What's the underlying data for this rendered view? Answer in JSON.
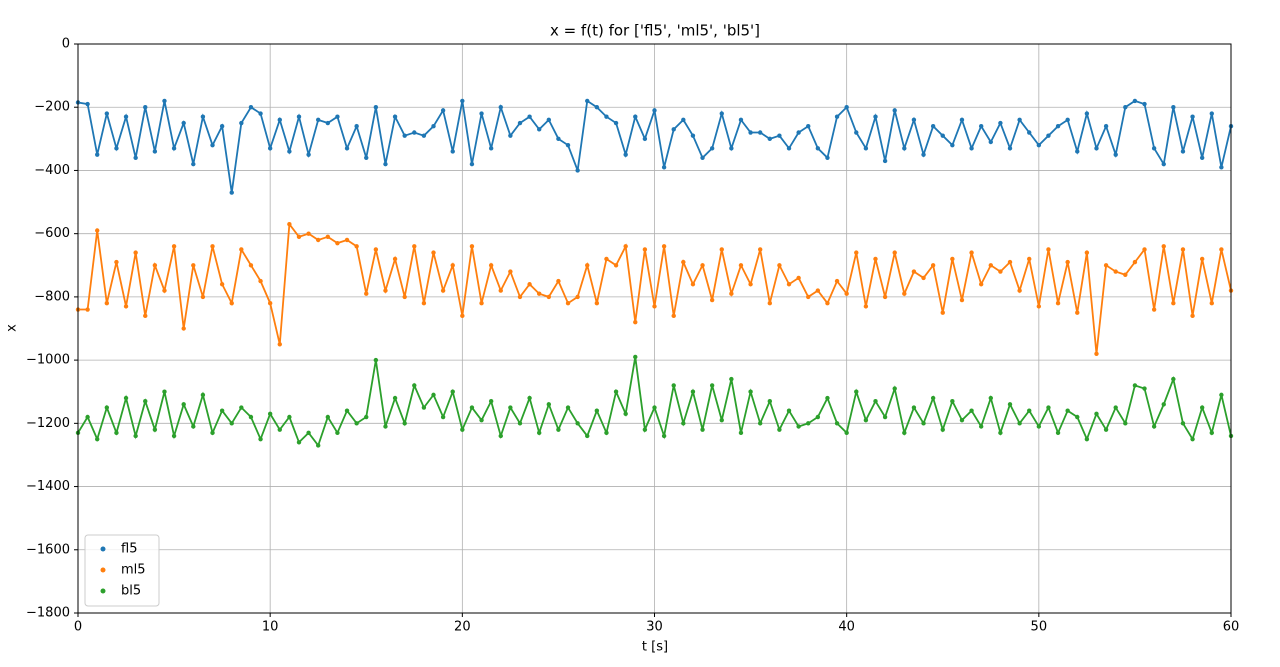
{
  "chart_data": {
    "type": "line",
    "title": "x = f(t) for ['fl5', 'ml5', 'bl5']",
    "xlabel": "t [s]",
    "ylabel": "x",
    "x": [
      0,
      0.5,
      1,
      1.5,
      2,
      2.5,
      3,
      3.5,
      4,
      4.5,
      5,
      5.5,
      6,
      6.5,
      7,
      7.5,
      8,
      8.5,
      9,
      9.5,
      10,
      10.5,
      11,
      11.5,
      12,
      12.5,
      13,
      13.5,
      14,
      14.5,
      15,
      15.5,
      16,
      16.5,
      17,
      17.5,
      18,
      18.5,
      19,
      19.5,
      20,
      20.5,
      21,
      21.5,
      22,
      22.5,
      23,
      23.5,
      24,
      24.5,
      25,
      25.5,
      26,
      26.5,
      27,
      27.5,
      28,
      28.5,
      29,
      29.5,
      30,
      30.5,
      31,
      31.5,
      32,
      32.5,
      33,
      33.5,
      34,
      34.5,
      35,
      35.5,
      36,
      36.5,
      37,
      37.5,
      38,
      38.5,
      39,
      39.5,
      40,
      40.5,
      41,
      41.5,
      42,
      42.5,
      43,
      43.5,
      44,
      44.5,
      45,
      45.5,
      46,
      46.5,
      47,
      47.5,
      48,
      48.5,
      49,
      49.5,
      50,
      50.5,
      51,
      51.5,
      52,
      52.5,
      53,
      53.5,
      54,
      54.5,
      55,
      55.5,
      56,
      56.5,
      57,
      57.5,
      58,
      58.5,
      59,
      59.5,
      60
    ],
    "series": [
      {
        "name": "fl5",
        "color": "#1f77b4",
        "values": [
          -185,
          -190,
          -350,
          -220,
          -330,
          -230,
          -360,
          -200,
          -340,
          -180,
          -330,
          -250,
          -380,
          -230,
          -320,
          -260,
          -470,
          -250,
          -200,
          -220,
          -330,
          -240,
          -340,
          -230,
          -350,
          -240,
          -250,
          -230,
          -330,
          -260,
          -360,
          -200,
          -380,
          -230,
          -290,
          -280,
          -290,
          -260,
          -210,
          -340,
          -180,
          -380,
          -220,
          -330,
          -200,
          -290,
          -250,
          -230,
          -270,
          -240,
          -300,
          -320,
          -400,
          -180,
          -200,
          -230,
          -250,
          -350,
          -230,
          -300,
          -210,
          -390,
          -270,
          -240,
          -290,
          -360,
          -330,
          -220,
          -330,
          -240,
          -280,
          -280,
          -300,
          -290,
          -330,
          -280,
          -260,
          -330,
          -360,
          -230,
          -200,
          -280,
          -330,
          -230,
          -370,
          -210,
          -330,
          -240,
          -350,
          -260,
          -290,
          -320,
          -240,
          -330,
          -260,
          -310,
          -250,
          -330,
          -240,
          -280,
          -320,
          -290,
          -260,
          -240,
          -340,
          -220,
          -330,
          -260,
          -350,
          -200,
          -180,
          -190,
          -330,
          -380,
          -200,
          -340,
          -230,
          -360,
          -220,
          -390,
          -260
        ]
      },
      {
        "name": "ml5",
        "color": "#ff7f0e",
        "values": [
          -840,
          -840,
          -590,
          -820,
          -690,
          -830,
          -660,
          -860,
          -700,
          -780,
          -640,
          -900,
          -700,
          -800,
          -640,
          -760,
          -820,
          -650,
          -700,
          -750,
          -820,
          -950,
          -570,
          -610,
          -600,
          -620,
          -610,
          -630,
          -620,
          -640,
          -790,
          -650,
          -780,
          -680,
          -800,
          -640,
          -820,
          -660,
          -780,
          -700,
          -860,
          -640,
          -820,
          -700,
          -780,
          -720,
          -800,
          -760,
          -790,
          -800,
          -750,
          -820,
          -800,
          -700,
          -820,
          -680,
          -700,
          -640,
          -880,
          -650,
          -830,
          -640,
          -860,
          -690,
          -760,
          -700,
          -810,
          -650,
          -790,
          -700,
          -760,
          -650,
          -820,
          -700,
          -760,
          -740,
          -800,
          -780,
          -820,
          -750,
          -790,
          -660,
          -830,
          -680,
          -800,
          -660,
          -790,
          -720,
          -740,
          -700,
          -850,
          -680,
          -810,
          -660,
          -760,
          -700,
          -720,
          -690,
          -780,
          -680,
          -830,
          -650,
          -820,
          -690,
          -850,
          -660,
          -980,
          -700,
          -720,
          -730,
          -690,
          -650,
          -840,
          -640,
          -820,
          -650,
          -860,
          -680,
          -820,
          -650,
          -780
        ]
      },
      {
        "name": "bl5",
        "color": "#2ca02c",
        "values": [
          -1230,
          -1180,
          -1250,
          -1150,
          -1230,
          -1120,
          -1240,
          -1130,
          -1220,
          -1100,
          -1240,
          -1140,
          -1210,
          -1110,
          -1230,
          -1160,
          -1200,
          -1150,
          -1180,
          -1250,
          -1170,
          -1220,
          -1180,
          -1260,
          -1230,
          -1270,
          -1180,
          -1230,
          -1160,
          -1200,
          -1180,
          -1000,
          -1210,
          -1120,
          -1200,
          -1080,
          -1150,
          -1110,
          -1180,
          -1100,
          -1220,
          -1150,
          -1190,
          -1130,
          -1240,
          -1150,
          -1200,
          -1120,
          -1230,
          -1140,
          -1220,
          -1150,
          -1200,
          -1240,
          -1160,
          -1230,
          -1100,
          -1170,
          -990,
          -1220,
          -1150,
          -1240,
          -1080,
          -1200,
          -1100,
          -1220,
          -1080,
          -1190,
          -1060,
          -1230,
          -1100,
          -1200,
          -1130,
          -1220,
          -1160,
          -1210,
          -1200,
          -1180,
          -1120,
          -1200,
          -1230,
          -1100,
          -1190,
          -1130,
          -1180,
          -1090,
          -1230,
          -1150,
          -1200,
          -1120,
          -1220,
          -1130,
          -1190,
          -1160,
          -1210,
          -1120,
          -1230,
          -1140,
          -1200,
          -1160,
          -1210,
          -1150,
          -1230,
          -1160,
          -1180,
          -1250,
          -1170,
          -1220,
          -1150,
          -1200,
          -1080,
          -1090,
          -1210,
          -1140,
          -1060,
          -1200,
          -1250,
          -1150,
          -1230,
          -1110,
          -1240
        ]
      }
    ],
    "xlim": [
      0,
      60
    ],
    "ylim": [
      -1800,
      0
    ],
    "xticks": [
      0,
      10,
      20,
      30,
      40,
      50,
      60
    ],
    "yticks": [
      0,
      {
        "value": -200,
        "label": "−200"
      },
      {
        "value": -400,
        "label": "−400"
      },
      {
        "value": -600,
        "label": "−600"
      },
      {
        "value": -800,
        "label": "−800"
      },
      {
        "value": -1000,
        "label": "−1000"
      },
      {
        "value": -1200,
        "label": "−1200"
      },
      {
        "value": -1400,
        "label": "−1400"
      },
      {
        "value": -1600,
        "label": "−1600"
      },
      {
        "value": -1800,
        "label": "−1800"
      }
    ],
    "grid": true,
    "markers": true,
    "legend": "lower left"
  }
}
